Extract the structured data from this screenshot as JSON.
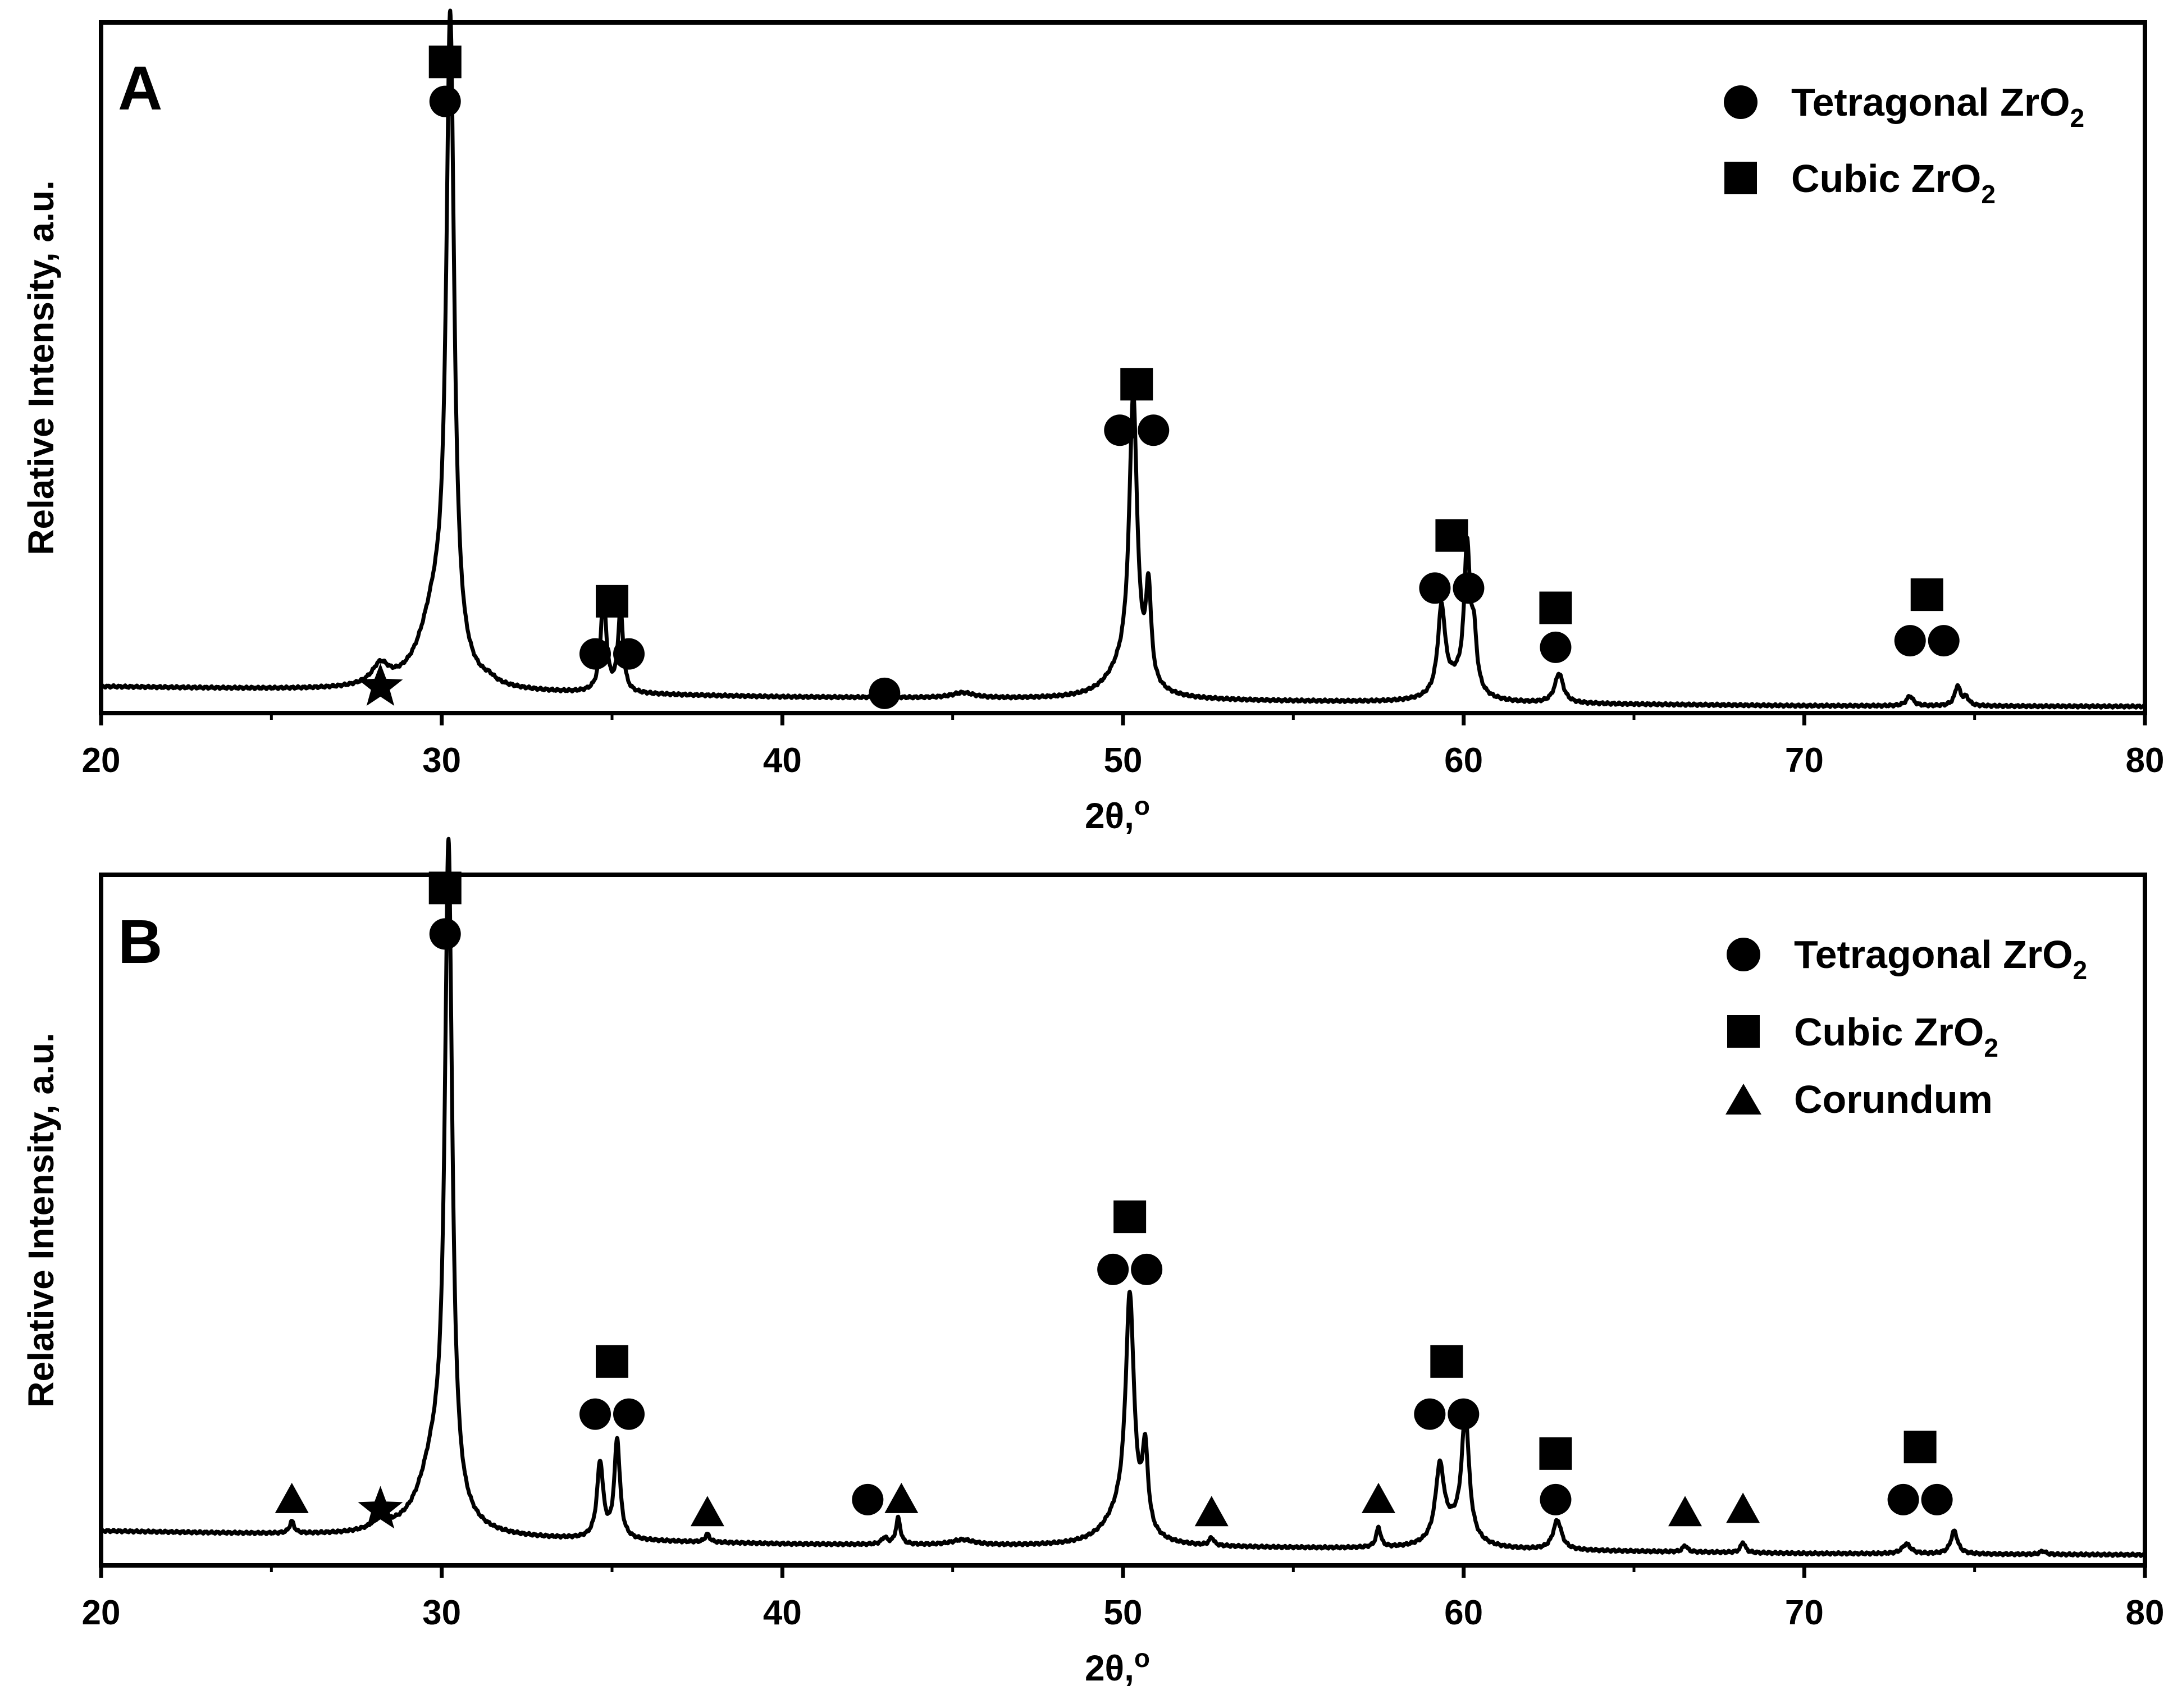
{
  "figure": "XRD patterns",
  "chart_data": [
    {
      "type": "line",
      "panel_label": "A",
      "xlabel": "2θ,",
      "xlabel_degree": "o",
      "ylabel": "Relative Intensity, a.u.",
      "xlim": [
        20,
        80
      ],
      "ylim": [
        0,
        105
      ],
      "xticks": [
        "20",
        "30",
        "40",
        "50",
        "60",
        "70",
        "80"
      ],
      "legend": {
        "position": "top-right",
        "entries": [
          {
            "marker": "circle",
            "label": "Tetragonal ZrO",
            "subscript": "2"
          },
          {
            "marker": "square",
            "label": "Cubic ZrO",
            "subscript": "2"
          }
        ]
      },
      "baseline": [
        [
          20,
          4.0
        ],
        [
          30,
          3.2
        ],
        [
          40,
          2.4
        ],
        [
          50,
          2.0
        ],
        [
          60,
          1.5
        ],
        [
          70,
          1.1
        ],
        [
          80,
          1.0
        ]
      ],
      "peaks": [
        {
          "x": 28.2,
          "h": 3.0,
          "w": 0.3
        },
        {
          "x": 30.25,
          "h": 97.0,
          "w": 0.14
        },
        {
          "x": 29.8,
          "h": 11.0,
          "w": 0.55
        },
        {
          "x": 31.4,
          "h": 0.6,
          "w": 0.2
        },
        {
          "x": 34.75,
          "h": 14.5,
          "w": 0.1
        },
        {
          "x": 35.25,
          "h": 12.5,
          "w": 0.09
        },
        {
          "x": 43.0,
          "h": 0.8,
          "w": 0.1
        },
        {
          "x": 45.3,
          "h": 0.8,
          "w": 0.4
        },
        {
          "x": 50.3,
          "h": 43.0,
          "w": 0.14
        },
        {
          "x": 50.0,
          "h": 4.0,
          "w": 0.6
        },
        {
          "x": 50.75,
          "h": 14.0,
          "w": 0.09
        },
        {
          "x": 59.35,
          "h": 13.0,
          "w": 0.13
        },
        {
          "x": 60.1,
          "h": 21.0,
          "w": 0.1
        },
        {
          "x": 60.3,
          "h": 8.0,
          "w": 0.1
        },
        {
          "x": 59.8,
          "h": 3.0,
          "w": 0.5
        },
        {
          "x": 62.8,
          "h": 4.5,
          "w": 0.15
        },
        {
          "x": 73.1,
          "h": 1.5,
          "w": 0.12
        },
        {
          "x": 74.5,
          "h": 3.0,
          "w": 0.1
        },
        {
          "x": 74.75,
          "h": 1.2,
          "w": 0.1
        }
      ],
      "annotations": [
        {
          "x": 30.1,
          "y": 99,
          "symbols": "square"
        },
        {
          "x": 30.1,
          "y": 93,
          "symbols": "circle"
        },
        {
          "x": 35.0,
          "y": 17,
          "symbols": "square"
        },
        {
          "x": 35.0,
          "y": 9,
          "symbols": "circle-pair"
        },
        {
          "x": 28.2,
          "y": 4,
          "symbols": "star"
        },
        {
          "x": 43.0,
          "y": 3,
          "symbols": "circle"
        },
        {
          "x": 50.4,
          "y": 50,
          "symbols": "square"
        },
        {
          "x": 50.4,
          "y": 43,
          "symbols": "circle-pair"
        },
        {
          "x": 59.65,
          "y": 27,
          "symbols": "square"
        },
        {
          "x": 59.65,
          "y": 19,
          "symbols": "circle-pair"
        },
        {
          "x": 62.7,
          "y": 16,
          "symbols": "square"
        },
        {
          "x": 62.7,
          "y": 10,
          "symbols": "circle"
        },
        {
          "x": 73.6,
          "y": 18,
          "symbols": "square"
        },
        {
          "x": 73.6,
          "y": 11,
          "symbols": "circle-pair"
        }
      ]
    },
    {
      "type": "line",
      "panel_label": "B",
      "xlabel": "2θ,",
      "xlabel_degree": "o",
      "ylabel": "Relative Intensity, a.u.",
      "xlim": [
        20,
        80
      ],
      "ylim": [
        0,
        105
      ],
      "xticks": [
        "20",
        "30",
        "40",
        "50",
        "60",
        "70",
        "80"
      ],
      "legend": {
        "position": "top-right",
        "entries": [
          {
            "marker": "circle",
            "label": "Tetragonal ZrO",
            "subscript": "2"
          },
          {
            "marker": "square",
            "label": "Cubic ZrO",
            "subscript": "2"
          },
          {
            "marker": "triangle",
            "label": "Corundum",
            "subscript": ""
          }
        ]
      },
      "baseline": [
        [
          20,
          5.2
        ],
        [
          30,
          4.2
        ],
        [
          40,
          3.2
        ],
        [
          50,
          2.8
        ],
        [
          60,
          2.4
        ],
        [
          70,
          1.8
        ],
        [
          80,
          1.6
        ]
      ],
      "peaks": [
        {
          "x": 25.6,
          "h": 1.8,
          "w": 0.08
        },
        {
          "x": 28.2,
          "h": 1.5,
          "w": 0.3
        },
        {
          "x": 30.2,
          "h": 99.0,
          "w": 0.13
        },
        {
          "x": 29.8,
          "h": 11.0,
          "w": 0.55
        },
        {
          "x": 34.65,
          "h": 11.5,
          "w": 0.11
        },
        {
          "x": 35.15,
          "h": 15.0,
          "w": 0.1
        },
        {
          "x": 37.8,
          "h": 1.2,
          "w": 0.08
        },
        {
          "x": 43.0,
          "h": 1.0,
          "w": 0.1
        },
        {
          "x": 43.4,
          "h": 4.0,
          "w": 0.08
        },
        {
          "x": 45.3,
          "h": 0.8,
          "w": 0.4
        },
        {
          "x": 50.2,
          "h": 35.0,
          "w": 0.15
        },
        {
          "x": 49.9,
          "h": 4.0,
          "w": 0.6
        },
        {
          "x": 50.65,
          "h": 12.0,
          "w": 0.1
        },
        {
          "x": 52.6,
          "h": 1.2,
          "w": 0.08
        },
        {
          "x": 57.5,
          "h": 3.0,
          "w": 0.08
        },
        {
          "x": 59.3,
          "h": 11.0,
          "w": 0.15
        },
        {
          "x": 60.05,
          "h": 18.5,
          "w": 0.13
        },
        {
          "x": 59.7,
          "h": 3.0,
          "w": 0.5
        },
        {
          "x": 62.75,
          "h": 4.5,
          "w": 0.15
        },
        {
          "x": 66.5,
          "h": 1.0,
          "w": 0.08
        },
        {
          "x": 68.2,
          "h": 1.6,
          "w": 0.08
        },
        {
          "x": 73.0,
          "h": 1.5,
          "w": 0.15
        },
        {
          "x": 74.4,
          "h": 3.5,
          "w": 0.12
        },
        {
          "x": 77.0,
          "h": 0.5,
          "w": 0.1
        }
      ],
      "annotations": [
        {
          "x": 30.1,
          "y": 103,
          "symbols": "square"
        },
        {
          "x": 30.1,
          "y": 96,
          "symbols": "circle"
        },
        {
          "x": 35.0,
          "y": 31,
          "symbols": "square"
        },
        {
          "x": 35.0,
          "y": 23,
          "symbols": "circle-pair"
        },
        {
          "x": 25.6,
          "y": 10,
          "symbols": "triangle"
        },
        {
          "x": 28.2,
          "y": 8.5,
          "symbols": "star"
        },
        {
          "x": 37.8,
          "y": 8,
          "symbols": "triangle"
        },
        {
          "x": 43.0,
          "y": 10,
          "symbols": "circle-triangle"
        },
        {
          "x": 50.2,
          "y": 53,
          "symbols": "square"
        },
        {
          "x": 50.2,
          "y": 45,
          "symbols": "circle-pair"
        },
        {
          "x": 52.6,
          "y": 8,
          "symbols": "triangle"
        },
        {
          "x": 57.5,
          "y": 10,
          "symbols": "triangle"
        },
        {
          "x": 59.5,
          "y": 31,
          "symbols": "square"
        },
        {
          "x": 59.5,
          "y": 23,
          "symbols": "circle-pair"
        },
        {
          "x": 62.7,
          "y": 17,
          "symbols": "square"
        },
        {
          "x": 62.7,
          "y": 10,
          "symbols": "circle"
        },
        {
          "x": 66.5,
          "y": 8,
          "symbols": "triangle"
        },
        {
          "x": 68.2,
          "y": 8.5,
          "symbols": "triangle"
        },
        {
          "x": 73.4,
          "y": 18,
          "symbols": "square"
        },
        {
          "x": 73.4,
          "y": 10,
          "symbols": "circle-pair"
        }
      ]
    }
  ]
}
